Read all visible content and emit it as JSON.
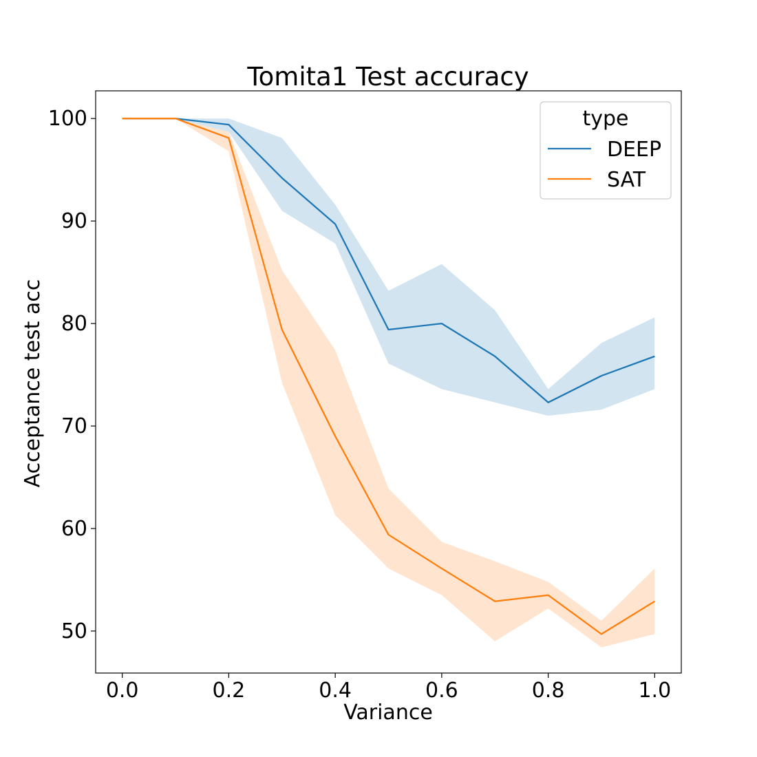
{
  "chart_data": {
    "type": "line",
    "title": "Tomita1 Test accuracy",
    "xlabel": "Variance",
    "ylabel": "Acceptance test acc",
    "xlim": [
      -0.05,
      1.05
    ],
    "ylim": [
      45.9,
      102.7
    ],
    "xticks": [
      0.0,
      0.2,
      0.4,
      0.6,
      0.8,
      1.0
    ],
    "xtick_labels": [
      "0.0",
      "0.2",
      "0.4",
      "0.6",
      "0.8",
      "1.0"
    ],
    "yticks": [
      50,
      60,
      70,
      80,
      90,
      100
    ],
    "ytick_labels": [
      "50",
      "60",
      "70",
      "80",
      "90",
      "100"
    ],
    "grid": false,
    "legend": {
      "title": "type",
      "placement": "top-right"
    },
    "x": [
      0.0,
      0.1,
      0.2,
      0.3,
      0.4,
      0.5,
      0.6,
      0.7,
      0.8,
      0.9,
      1.0
    ],
    "series": [
      {
        "name": "DEEP",
        "color": "#1f77b4",
        "values": [
          100.0,
          100.0,
          99.4,
          94.2,
          89.7,
          79.4,
          80.0,
          76.8,
          72.3,
          74.9,
          76.8
        ],
        "ci_lower": [
          100.0,
          100.0,
          98.7,
          91.0,
          87.8,
          76.1,
          73.6,
          72.3,
          71.0,
          71.6,
          73.6
        ],
        "ci_upper": [
          100.0,
          100.0,
          100.0,
          98.1,
          91.6,
          83.2,
          85.8,
          81.3,
          73.6,
          78.1,
          80.6
        ]
      },
      {
        "name": "SAT",
        "color": "#ff7f0e",
        "values": [
          100.0,
          100.0,
          98.1,
          79.4,
          69.0,
          59.4,
          56.1,
          52.9,
          53.5,
          49.7,
          52.9
        ],
        "ci_lower": [
          100.0,
          100.0,
          96.8,
          74.2,
          61.3,
          56.1,
          53.5,
          49.0,
          52.2,
          48.4,
          49.7
        ],
        "ci_upper": [
          100.0,
          100.0,
          98.7,
          85.2,
          77.4,
          63.9,
          58.7,
          56.8,
          54.8,
          51.0,
          56.1
        ]
      }
    ]
  }
}
